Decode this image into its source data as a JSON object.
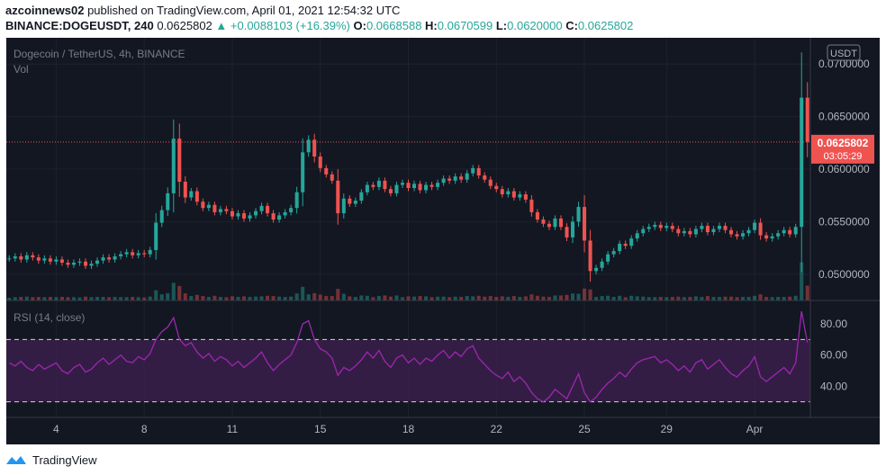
{
  "header": {
    "publisher": "azcoinnews02",
    "published_text": "published on TradingView.com, April 01, 2021 12:54:32 UTC",
    "symbol": "BINANCE:DOGEUSDT, 240",
    "last": "0.0625802",
    "change": "▲ +0.0088103 (+16.39%)",
    "o_label": "O:",
    "o_value": "0.0668588",
    "h_label": "H:",
    "h_value": "0.0670599",
    "l_label": "L:",
    "l_value": "0.0620000",
    "c_label": "C:",
    "c_value": "0.0625802"
  },
  "legend": {
    "title": "Dogecoin / TetherUS, 4h, BINANCE",
    "vol": "Vol",
    "rsi": "RSI (14, close)",
    "currency": "USDT"
  },
  "price_tag": {
    "price": "0.0625802",
    "countdown": "03:05:29"
  },
  "footer": {
    "brand": "TradingView"
  },
  "colors": {
    "background": "#131722",
    "up": "#26a69a",
    "down": "#ef5350",
    "rsi_line": "#9c27b0",
    "rsi_band": "#3b1f4a",
    "axis_text": "#b2b5be",
    "price_line": "#ef5350",
    "border": "#363a45"
  },
  "chart_data": {
    "type": "candlestick",
    "title": "Dogecoin / TetherUS, 4h, BINANCE",
    "price_axis": {
      "range": [
        0.0475,
        0.0725
      ],
      "ticks": [
        "0.0500000",
        "0.0550000",
        "0.0600000",
        "0.0650000",
        "0.0700000"
      ]
    },
    "time_axis": {
      "ticks": [
        "4",
        "8",
        "11",
        "15",
        "18",
        "22",
        "25",
        "29",
        "Apr"
      ]
    },
    "current_price": 0.0625802,
    "closes": [
      0.0515,
      0.0517,
      0.0514,
      0.0518,
      0.0516,
      0.0513,
      0.0515,
      0.0512,
      0.0514,
      0.0511,
      0.0509,
      0.0511,
      0.0512,
      0.0508,
      0.051,
      0.0513,
      0.0516,
      0.0514,
      0.0517,
      0.0519,
      0.0521,
      0.0518,
      0.052,
      0.0519,
      0.0523,
      0.0549,
      0.0561,
      0.0577,
      0.0629,
      0.0588,
      0.0573,
      0.0579,
      0.0569,
      0.0563,
      0.0566,
      0.0559,
      0.0562,
      0.056,
      0.0555,
      0.0558,
      0.0553,
      0.0556,
      0.056,
      0.0565,
      0.0558,
      0.0552,
      0.0556,
      0.0559,
      0.0563,
      0.0578,
      0.0616,
      0.0628,
      0.0612,
      0.0601,
      0.0595,
      0.0589,
      0.0558,
      0.0572,
      0.0567,
      0.057,
      0.0578,
      0.0585,
      0.0583,
      0.0589,
      0.0581,
      0.0577,
      0.0585,
      0.0587,
      0.0582,
      0.0586,
      0.058,
      0.0585,
      0.0583,
      0.0587,
      0.0591,
      0.0589,
      0.0593,
      0.059,
      0.0596,
      0.0601,
      0.0594,
      0.059,
      0.0584,
      0.0581,
      0.0576,
      0.0579,
      0.0573,
      0.0576,
      0.0571,
      0.0559,
      0.0552,
      0.0548,
      0.0545,
      0.0553,
      0.0545,
      0.0535,
      0.055,
      0.0564,
      0.0532,
      0.0503,
      0.0506,
      0.0512,
      0.0519,
      0.0522,
      0.0529,
      0.0527,
      0.0534,
      0.0539,
      0.0543,
      0.0545,
      0.0547,
      0.0544,
      0.0546,
      0.0543,
      0.0539,
      0.0541,
      0.0538,
      0.0543,
      0.0546,
      0.054,
      0.0543,
      0.0546,
      0.0542,
      0.0538,
      0.0536,
      0.0539,
      0.0542,
      0.0549,
      0.0537,
      0.0534,
      0.0536,
      0.0539,
      0.0542,
      0.0538,
      0.0545,
      0.0668,
      0.0626
    ],
    "rsi": {
      "ylim": [
        20,
        95
      ],
      "levels": [
        30,
        70
      ],
      "ticks": [
        "40.00",
        "60.00",
        "80.00"
      ],
      "values": [
        55,
        53,
        56,
        52,
        50,
        54,
        51,
        53,
        55,
        50,
        48,
        52,
        54,
        49,
        51,
        55,
        58,
        54,
        57,
        60,
        56,
        55,
        59,
        57,
        61,
        70,
        75,
        78,
        84,
        70,
        66,
        68,
        62,
        58,
        61,
        56,
        59,
        57,
        53,
        56,
        52,
        55,
        58,
        62,
        55,
        50,
        54,
        57,
        60,
        68,
        80,
        82,
        70,
        64,
        62,
        58,
        47,
        52,
        50,
        53,
        57,
        62,
        58,
        63,
        56,
        52,
        58,
        60,
        55,
        58,
        54,
        58,
        56,
        60,
        63,
        58,
        62,
        59,
        64,
        66,
        58,
        54,
        50,
        47,
        45,
        49,
        43,
        46,
        42,
        36,
        32,
        30,
        33,
        38,
        35,
        32,
        40,
        48,
        36,
        30,
        33,
        38,
        42,
        45,
        49,
        46,
        51,
        55,
        57,
        58,
        59,
        55,
        57,
        54,
        50,
        53,
        49,
        55,
        57,
        51,
        54,
        57,
        52,
        48,
        46,
        50,
        53,
        59,
        46,
        43,
        46,
        49,
        52,
        48,
        55,
        88,
        68
      ]
    }
  }
}
